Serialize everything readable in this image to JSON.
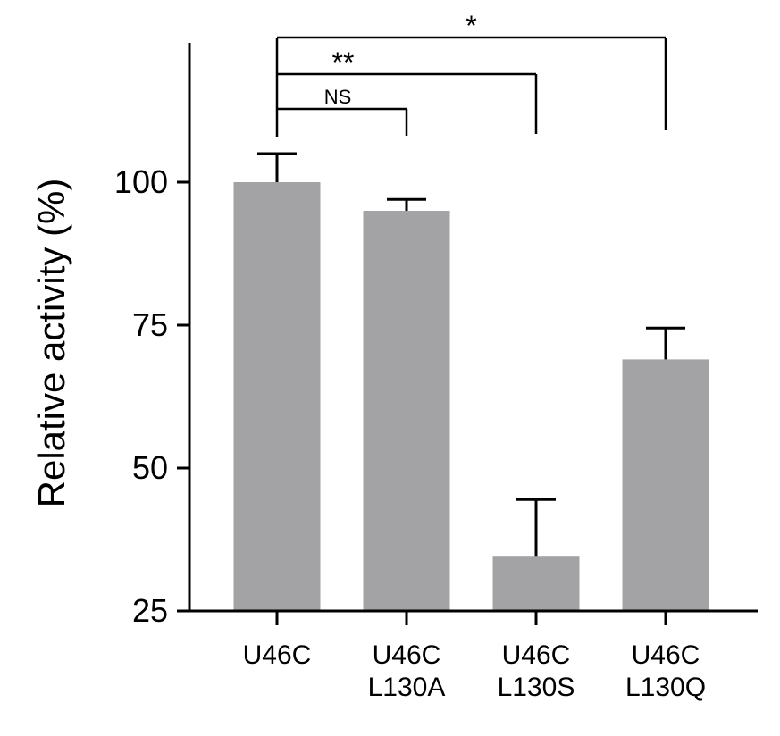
{
  "chart_data": {
    "type": "bar",
    "categories": [
      [
        "U46C"
      ],
      [
        "U46C",
        "L130A"
      ],
      [
        "U46C",
        "L130S"
      ],
      [
        "U46C",
        "L130Q"
      ]
    ],
    "values": [
      100,
      95,
      34.5,
      69
    ],
    "errors": [
      5,
      2,
      10,
      5.5
    ],
    "title": "",
    "xlabel": "",
    "ylabel": "Relative activity (%)",
    "ylim": [
      25,
      115
    ],
    "yticks": [
      25,
      50,
      75,
      100
    ],
    "bar_color": "#a3a3a6",
    "grid": false,
    "significance": [
      {
        "from": 0,
        "to": 1,
        "label": "NS"
      },
      {
        "from": 0,
        "to": 2,
        "label": "**"
      },
      {
        "from": 0,
        "to": 3,
        "label": "*"
      }
    ]
  }
}
